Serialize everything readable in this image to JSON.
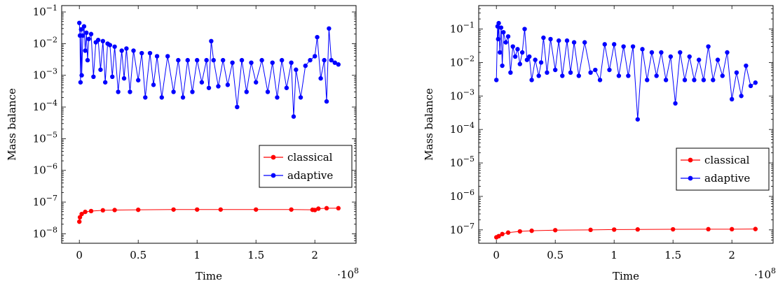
{
  "chart_data": [
    {
      "type": "scatter",
      "xlabel": "Time",
      "ylabel": "Mass balance",
      "x_multiplier": "·10^8",
      "xscale": "linear",
      "yscale": "log",
      "xlim": [
        -0.15,
        2.35
      ],
      "ylim_log10": [
        -8.3,
        -0.8
      ],
      "x_ticks": [
        0,
        0.5,
        1,
        1.5,
        2
      ],
      "x_tick_labels": [
        "0",
        "0.5",
        "1",
        "1.5",
        "2"
      ],
      "y_ticks_log10": [
        -8,
        -7,
        -6,
        -5,
        -4,
        -3,
        -2,
        -1
      ],
      "y_tick_labels": [
        "10^-8",
        "10^-7",
        "10^-6",
        "10^-5",
        "10^-4",
        "10^-3",
        "10^-2",
        "10^-1"
      ],
      "grid": false,
      "legend_position": "right",
      "series": [
        {
          "name": "classical",
          "color": "#ff0000",
          "marker": "circle",
          "points": [
            [
              0,
              2.4e-08
            ],
            [
              0.005,
              3.3e-08
            ],
            [
              0.02,
              4.2e-08
            ],
            [
              0.05,
              4.9e-08
            ],
            [
              0.1,
              5.2e-08
            ],
            [
              0.2,
              5.5e-08
            ],
            [
              0.3,
              5.6e-08
            ],
            [
              0.5,
              5.7e-08
            ],
            [
              0.8,
              5.8e-08
            ],
            [
              1.0,
              5.8e-08
            ],
            [
              1.2,
              5.8e-08
            ],
            [
              1.5,
              5.8e-08
            ],
            [
              1.8,
              5.8e-08
            ],
            [
              1.98,
              5.7e-08
            ],
            [
              2.0,
              5.6e-08
            ],
            [
              2.03,
              6.2e-08
            ],
            [
              2.1,
              6.4e-08
            ],
            [
              2.2,
              6.4e-08
            ]
          ]
        },
        {
          "name": "adaptive",
          "color": "#0000ff",
          "marker": "circle",
          "points": [
            [
              0.0,
              0.045
            ],
            [
              0.005,
              0.018
            ],
            [
              0.01,
              0.0006
            ],
            [
              0.015,
              0.028
            ],
            [
              0.02,
              0.001
            ],
            [
              0.03,
              0.018
            ],
            [
              0.04,
              0.035
            ],
            [
              0.05,
              0.006
            ],
            [
              0.06,
              0.022
            ],
            [
              0.07,
              0.003
            ],
            [
              0.08,
              0.014
            ],
            [
              0.1,
              0.02
            ],
            [
              0.12,
              0.0009
            ],
            [
              0.14,
              0.011
            ],
            [
              0.16,
              0.013
            ],
            [
              0.18,
              0.0015
            ],
            [
              0.2,
              0.012
            ],
            [
              0.22,
              0.0006
            ],
            [
              0.24,
              0.01
            ],
            [
              0.26,
              0.009
            ],
            [
              0.28,
              0.0009
            ],
            [
              0.3,
              0.008
            ],
            [
              0.33,
              0.0003
            ],
            [
              0.36,
              0.006
            ],
            [
              0.38,
              0.0008
            ],
            [
              0.4,
              0.007
            ],
            [
              0.43,
              0.0003
            ],
            [
              0.46,
              0.006
            ],
            [
              0.5,
              0.0007
            ],
            [
              0.53,
              0.005
            ],
            [
              0.56,
              0.0002
            ],
            [
              0.6,
              0.005
            ],
            [
              0.63,
              0.0005
            ],
            [
              0.66,
              0.004
            ],
            [
              0.7,
              0.0002
            ],
            [
              0.75,
              0.004
            ],
            [
              0.8,
              0.0003
            ],
            [
              0.84,
              0.003
            ],
            [
              0.88,
              0.0002
            ],
            [
              0.92,
              0.003
            ],
            [
              0.96,
              0.0003
            ],
            [
              1.0,
              0.003
            ],
            [
              1.04,
              0.0006
            ],
            [
              1.08,
              0.003
            ],
            [
              1.1,
              0.0004
            ],
            [
              1.12,
              0.012
            ],
            [
              1.14,
              0.003
            ],
            [
              1.18,
              0.00045
            ],
            [
              1.22,
              0.003
            ],
            [
              1.26,
              0.0005
            ],
            [
              1.3,
              0.0025
            ],
            [
              1.34,
              0.0001
            ],
            [
              1.38,
              0.003
            ],
            [
              1.42,
              0.0003
            ],
            [
              1.46,
              0.0025
            ],
            [
              1.5,
              0.0006
            ],
            [
              1.55,
              0.003
            ],
            [
              1.6,
              0.0003
            ],
            [
              1.64,
              0.0025
            ],
            [
              1.68,
              0.0002
            ],
            [
              1.72,
              0.003
            ],
            [
              1.76,
              0.0004
            ],
            [
              1.8,
              0.0025
            ],
            [
              1.82,
              5e-05
            ],
            [
              1.84,
              0.0015
            ],
            [
              1.88,
              0.0002
            ],
            [
              1.92,
              0.002
            ],
            [
              1.96,
              0.003
            ],
            [
              2.0,
              0.004
            ],
            [
              2.02,
              0.016
            ],
            [
              2.05,
              0.0008
            ],
            [
              2.08,
              0.003
            ],
            [
              2.1,
              0.00015
            ],
            [
              2.12,
              0.03
            ],
            [
              2.14,
              0.003
            ],
            [
              2.17,
              0.0025
            ],
            [
              2.2,
              0.0022
            ]
          ]
        }
      ]
    },
    {
      "type": "scatter",
      "xlabel": "Time",
      "ylabel": "Mass balance",
      "x_multiplier": "·10^8",
      "xscale": "linear",
      "yscale": "log",
      "xlim": [
        -0.15,
        2.35
      ],
      "ylim_log10": [
        -7.4,
        -0.3
      ],
      "x_ticks": [
        0,
        0.5,
        1,
        1.5,
        2
      ],
      "x_tick_labels": [
        "0",
        "0.5",
        "1",
        "1.5",
        "2"
      ],
      "y_ticks_log10": [
        -7,
        -6,
        -5,
        -4,
        -3,
        -2,
        -1
      ],
      "y_tick_labels": [
        "10^-7",
        "10^-6",
        "10^-5",
        "10^-4",
        "10^-3",
        "10^-2",
        "10^-1"
      ],
      "grid": false,
      "legend_position": "right",
      "series": [
        {
          "name": "classical",
          "color": "#ff0000",
          "marker": "circle",
          "points": [
            [
              0,
              6e-08
            ],
            [
              0.02,
              6.5e-08
            ],
            [
              0.05,
              7.5e-08
            ],
            [
              0.1,
              8.3e-08
            ],
            [
              0.2,
              9e-08
            ],
            [
              0.3,
              9.4e-08
            ],
            [
              0.5,
              9.8e-08
            ],
            [
              0.8,
              1e-07
            ],
            [
              1.0,
              1.02e-07
            ],
            [
              1.2,
              1.03e-07
            ],
            [
              1.5,
              1.04e-07
            ],
            [
              1.8,
              1.05e-07
            ],
            [
              2.0,
              1.05e-07
            ],
            [
              2.2,
              1.06e-07
            ]
          ]
        },
        {
          "name": "adaptive",
          "color": "#0000ff",
          "marker": "circle",
          "points": [
            [
              0.0,
              0.003
            ],
            [
              0.01,
              0.12
            ],
            [
              0.015,
              0.05
            ],
            [
              0.02,
              0.15
            ],
            [
              0.03,
              0.02
            ],
            [
              0.04,
              0.11
            ],
            [
              0.05,
              0.008
            ],
            [
              0.06,
              0.08
            ],
            [
              0.08,
              0.04
            ],
            [
              0.1,
              0.06
            ],
            [
              0.12,
              0.005
            ],
            [
              0.14,
              0.03
            ],
            [
              0.16,
              0.015
            ],
            [
              0.18,
              0.025
            ],
            [
              0.2,
              0.009
            ],
            [
              0.22,
              0.02
            ],
            [
              0.24,
              0.1
            ],
            [
              0.26,
              0.012
            ],
            [
              0.28,
              0.015
            ],
            [
              0.3,
              0.003
            ],
            [
              0.33,
              0.012
            ],
            [
              0.36,
              0.004
            ],
            [
              0.38,
              0.01
            ],
            [
              0.4,
              0.055
            ],
            [
              0.43,
              0.005
            ],
            [
              0.46,
              0.05
            ],
            [
              0.5,
              0.006
            ],
            [
              0.53,
              0.045
            ],
            [
              0.56,
              0.004
            ],
            [
              0.6,
              0.045
            ],
            [
              0.63,
              0.005
            ],
            [
              0.66,
              0.04
            ],
            [
              0.7,
              0.004
            ],
            [
              0.75,
              0.04
            ],
            [
              0.8,
              0.005
            ],
            [
              0.84,
              0.006
            ],
            [
              0.88,
              0.003
            ],
            [
              0.92,
              0.035
            ],
            [
              0.96,
              0.006
            ],
            [
              1.0,
              0.035
            ],
            [
              1.04,
              0.004
            ],
            [
              1.08,
              0.03
            ],
            [
              1.12,
              0.004
            ],
            [
              1.16,
              0.03
            ],
            [
              1.2,
              0.0002
            ],
            [
              1.24,
              0.025
            ],
            [
              1.28,
              0.003
            ],
            [
              1.32,
              0.02
            ],
            [
              1.36,
              0.004
            ],
            [
              1.4,
              0.02
            ],
            [
              1.44,
              0.003
            ],
            [
              1.48,
              0.015
            ],
            [
              1.52,
              0.0006
            ],
            [
              1.56,
              0.02
            ],
            [
              1.6,
              0.003
            ],
            [
              1.64,
              0.015
            ],
            [
              1.68,
              0.003
            ],
            [
              1.72,
              0.012
            ],
            [
              1.76,
              0.003
            ],
            [
              1.8,
              0.03
            ],
            [
              1.84,
              0.003
            ],
            [
              1.88,
              0.012
            ],
            [
              1.92,
              0.004
            ],
            [
              1.96,
              0.02
            ],
            [
              2.0,
              0.0008
            ],
            [
              2.04,
              0.005
            ],
            [
              2.08,
              0.001
            ],
            [
              2.12,
              0.008
            ],
            [
              2.16,
              0.002
            ],
            [
              2.2,
              0.0025
            ]
          ]
        }
      ]
    }
  ]
}
